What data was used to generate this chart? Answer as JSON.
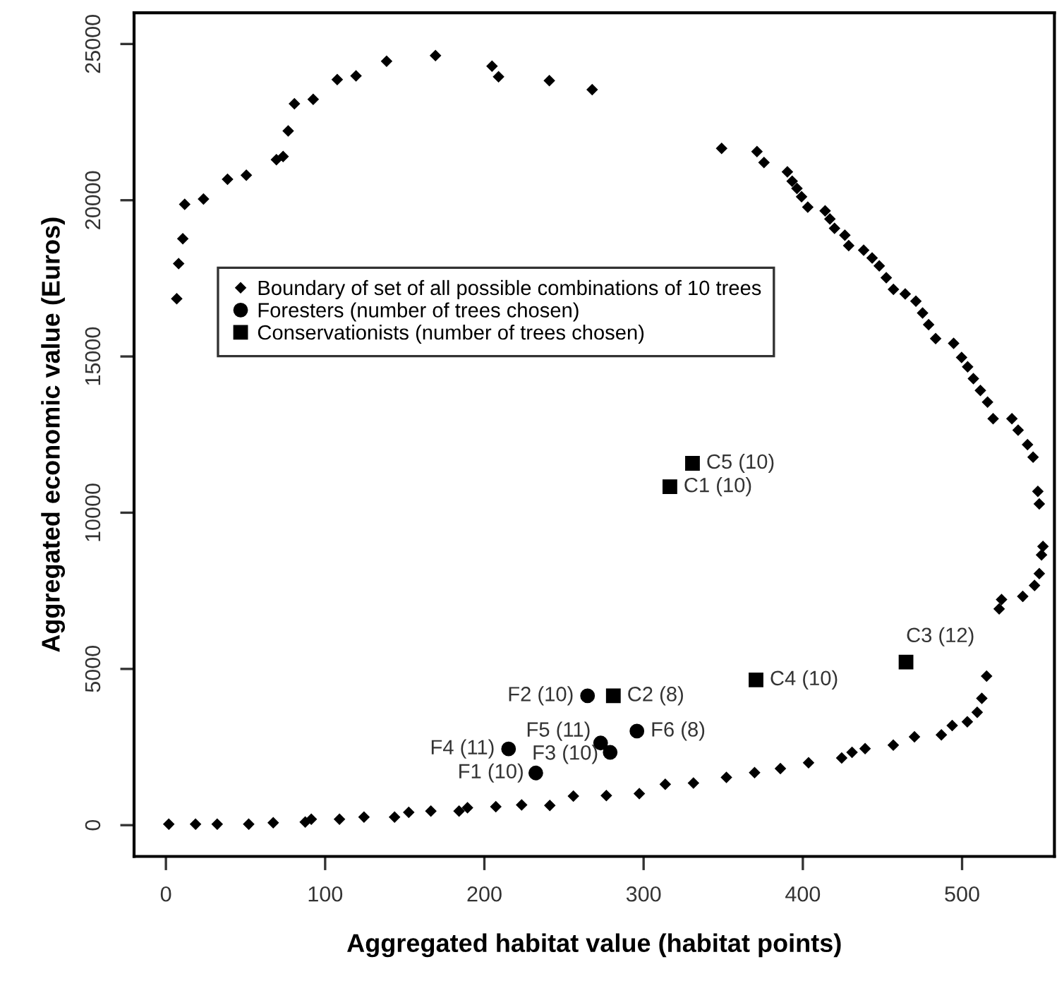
{
  "chart_data": {
    "type": "scatter",
    "xlabel": "Aggregated habitat value (habitat points)",
    "ylabel": "Aggregated economic value (Euros)",
    "xlim": [
      -20,
      558
    ],
    "ylim": [
      -1000,
      26000
    ],
    "xticks": [
      0,
      100,
      200,
      300,
      400,
      500
    ],
    "yticks": [
      0,
      5000,
      10000,
      15000,
      20000,
      25000
    ],
    "grid": false,
    "legend": "upper left",
    "series": [
      {
        "name": "Boundary of set of all possible combinations of 10 trees",
        "color": "#000000",
        "marker": "diamond",
        "x": [
          6.8,
          8,
          10.6,
          11.8,
          23.6,
          38.7,
          50.5,
          69.4,
          73.6,
          76.8,
          80.7,
          92.5,
          107.6,
          119.4,
          138.6,
          169.3,
          204.8,
          208.9,
          240.8,
          267.7,
          349,
          371.2,
          375.6,
          390.3,
          393.3,
          396.3,
          399.2,
          403.1,
          414,
          417,
          419.9,
          426.4,
          428.8,
          438.2,
          443.5,
          448,
          452.4,
          456.9,
          464.3,
          471,
          475.2,
          479,
          483.4,
          494.7,
          499.7,
          503.5,
          507.1,
          511.5,
          516,
          519.5,
          531.3,
          535.2,
          541.1,
          544.6,
          547.6,
          548.5,
          550.8,
          549.9,
          548.5,
          545.5,
          538.1,
          524.8,
          523.3,
          515.4,
          512.4,
          509.5,
          503.3,
          493.8,
          487,
          470.1,
          456.8,
          439.1,
          430.9,
          424.4,
          403.6,
          385.9,
          369.7,
          352,
          331.3,
          313.6,
          297.3,
          276.6,
          255.9,
          241.1,
          223.4,
          207.2,
          189.4,
          184.1,
          166.4,
          152.5,
          143.6,
          124.4,
          109,
          91.3,
          87.5,
          67.4,
          52,
          32.2,
          18.6,
          1.8
        ],
        "values": [
          16850,
          17970,
          18770,
          19870,
          20040,
          20670,
          20800,
          21300,
          21400,
          22220,
          23090,
          23230,
          23860,
          23980,
          24450,
          24630,
          24290,
          23950,
          23830,
          23540,
          21660,
          21560,
          21210,
          20910,
          20610,
          20380,
          20110,
          19780,
          19660,
          19400,
          19100,
          18880,
          18550,
          18400,
          18150,
          17900,
          17520,
          17150,
          17000,
          16770,
          16390,
          16020,
          15570,
          15420,
          14970,
          14670,
          14290,
          13910,
          13540,
          13010,
          13010,
          12640,
          12180,
          11780,
          10680,
          10280,
          8920,
          8650,
          8050,
          7670,
          7320,
          7220,
          6920,
          4770,
          4060,
          3610,
          3310,
          3190,
          2890,
          2830,
          2560,
          2450,
          2330,
          2150,
          2000,
          1810,
          1680,
          1530,
          1350,
          1310,
          1010,
          950,
          930,
          630,
          650,
          590,
          560,
          450,
          450,
          410,
          260,
          260,
          190,
          190,
          100,
          80,
          30,
          30,
          30,
          30
        ]
      },
      {
        "name": "Foresters (number of trees chosen)",
        "color": "#000000",
        "marker": "circle",
        "x": [
          232.3,
          264.8,
          279,
          215.2,
          273,
          295.8
        ],
        "values": [
          1670,
          4140,
          2330,
          2440,
          2630,
          3010
        ]
      },
      {
        "name": "Conservationists (number of trees chosen)",
        "color": "#000000",
        "marker": "square",
        "x": [
          316.5,
          281,
          464.8,
          370.6,
          330.7
        ],
        "values": [
          10830,
          4140,
          5220,
          4650,
          11580
        ]
      }
    ],
    "annotations": [
      {
        "text": "F1 (10)",
        "x": 232.3,
        "y": 1670
      },
      {
        "text": "F2 (10)",
        "x": 264.8,
        "y": 4140
      },
      {
        "text": "F3 (10)",
        "x": 279,
        "y": 2330
      },
      {
        "text": "F4 (11)",
        "x": 215.2,
        "y": 2440
      },
      {
        "text": "F5 (11)",
        "x": 273,
        "y": 2630
      },
      {
        "text": "F6 (8)",
        "x": 295.8,
        "y": 3010
      },
      {
        "text": "C1 (10)",
        "x": 316.5,
        "y": 10830
      },
      {
        "text": "C2 (8)",
        "x": 281,
        "y": 4140
      },
      {
        "text": "C3 (12)",
        "x": 464.8,
        "y": 5220
      },
      {
        "text": "C4 (10)",
        "x": 370.6,
        "y": 4650
      },
      {
        "text": "C5 (10)",
        "x": 330.7,
        "y": 11580
      }
    ]
  }
}
